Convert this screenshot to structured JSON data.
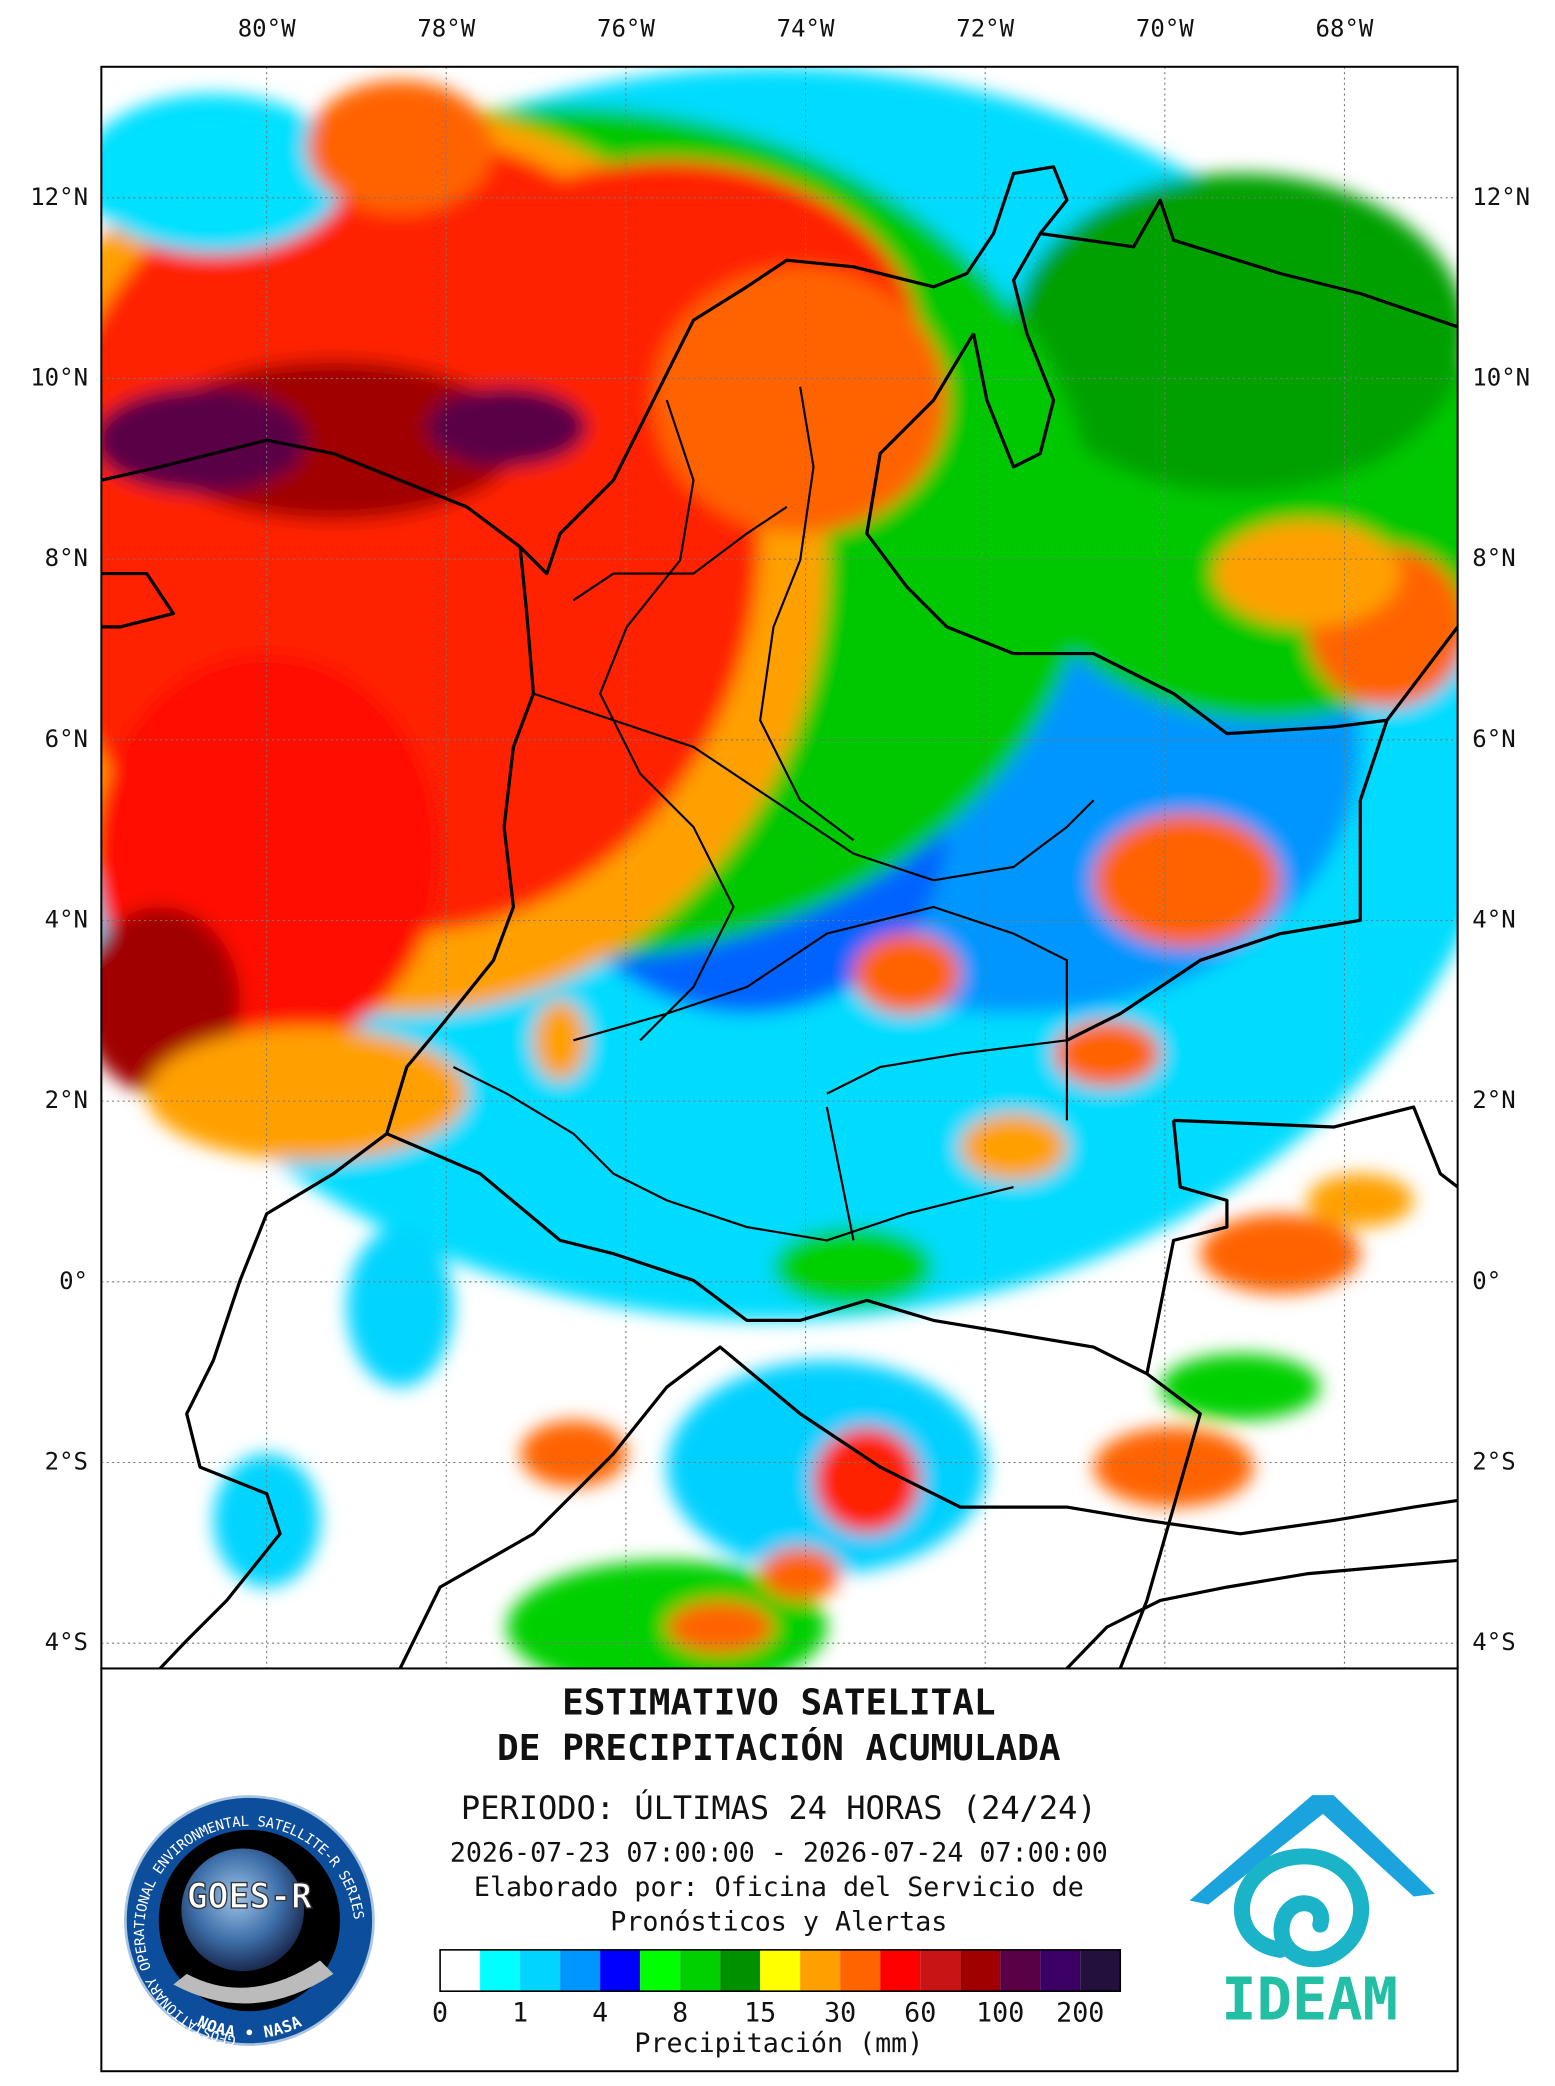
{
  "map": {
    "xlim": [
      -81.84,
      -66.74
    ],
    "ylim": [
      -4.28,
      13.45
    ],
    "xticks": [
      {
        "value": -80,
        "label": "80°W"
      },
      {
        "value": -78,
        "label": "78°W"
      },
      {
        "value": -76,
        "label": "76°W"
      },
      {
        "value": -74,
        "label": "74°W"
      },
      {
        "value": -72,
        "label": "72°W"
      },
      {
        "value": -70,
        "label": "70°W"
      },
      {
        "value": -68,
        "label": "68°W"
      }
    ],
    "yticks": [
      {
        "value": 12,
        "label": "12°N"
      },
      {
        "value": 10,
        "label": "10°N"
      },
      {
        "value": 8,
        "label": "8°N"
      },
      {
        "value": 6,
        "label": "6°N"
      },
      {
        "value": 4,
        "label": "4°N"
      },
      {
        "value": 2,
        "label": "2°N"
      },
      {
        "value": 0,
        "label": "0°"
      },
      {
        "value": -2,
        "label": "2°S"
      },
      {
        "value": -4,
        "label": "4°S"
      }
    ]
  },
  "header": {
    "title_line1": "ESTIMATIVO SATELITAL",
    "title_line2": "DE PRECIPITACIÓN ACUMULADA",
    "period": "PERIODO: ÚLTIMAS 24 HORAS (24/24)",
    "dates": "2026-07-23 07:00:00 - 2026-07-24 07:00:00",
    "credit_line1": "Elaborado por: Oficina del Servicio de",
    "credit_line2": "Pronósticos y Alertas"
  },
  "colorbar": {
    "colors": [
      "#ffffff",
      "#00ffff",
      "#00d4ff",
      "#0096ff",
      "#0000ff",
      "#00ff00",
      "#00d000",
      "#009000",
      "#ffff00",
      "#ffa000",
      "#ff6400",
      "#ff0000",
      "#c81414",
      "#a00000",
      "#5a0046",
      "#3c0064",
      "#24103c"
    ],
    "ticks": [
      0,
      1,
      4,
      8,
      15,
      30,
      60,
      100,
      200
    ],
    "label": "Precipitación (mm)"
  },
  "logos": {
    "goes_name": "GOES-R",
    "goes_ring": "GEOSTATIONARY OPERATIONAL ENVIRONMENTAL SATELLITE-R SERIES",
    "goes_agencies": "NOAA • NASA",
    "ideam": "IDEAM"
  }
}
